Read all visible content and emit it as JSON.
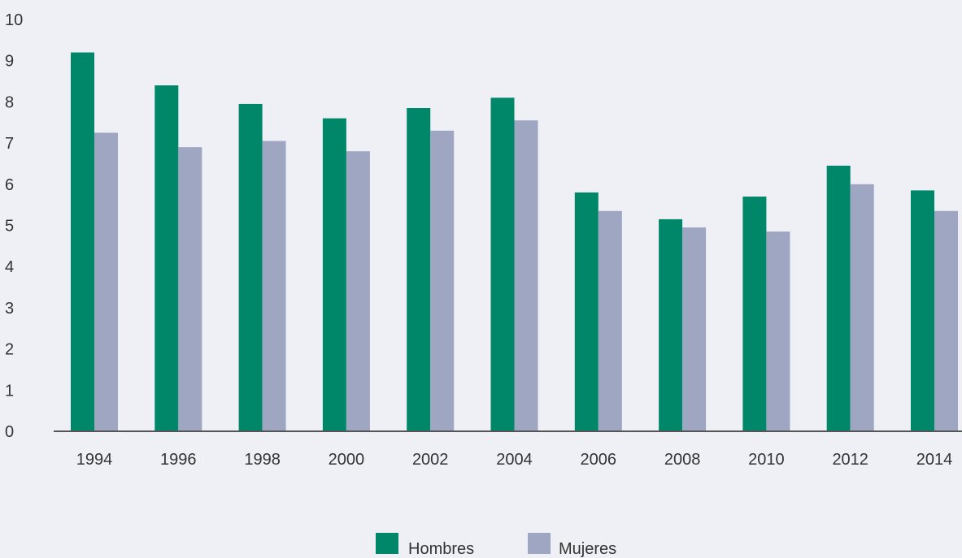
{
  "chart_data": {
    "type": "bar",
    "title": "",
    "xlabel": "",
    "ylabel": "",
    "ylim": [
      0,
      10
    ],
    "yticks": [
      0,
      1,
      2,
      3,
      4,
      5,
      6,
      7,
      8,
      9,
      10
    ],
    "grid": false,
    "legend_position": "bottom-center",
    "categories": [
      "1994",
      "1996",
      "1998",
      "2000",
      "2002",
      "2004",
      "2006",
      "2008",
      "2010",
      "2012",
      "2014"
    ],
    "series": [
      {
        "name": "Hombres",
        "color": "#00876a",
        "values": [
          9.2,
          8.4,
          7.95,
          7.6,
          7.85,
          8.1,
          5.8,
          5.15,
          5.7,
          6.45,
          5.85
        ]
      },
      {
        "name": "Mujeres",
        "color": "#9ea6c2",
        "values": [
          7.25,
          6.9,
          7.05,
          6.8,
          7.3,
          7.55,
          5.35,
          4.95,
          4.85,
          6.0,
          5.35
        ]
      }
    ]
  }
}
